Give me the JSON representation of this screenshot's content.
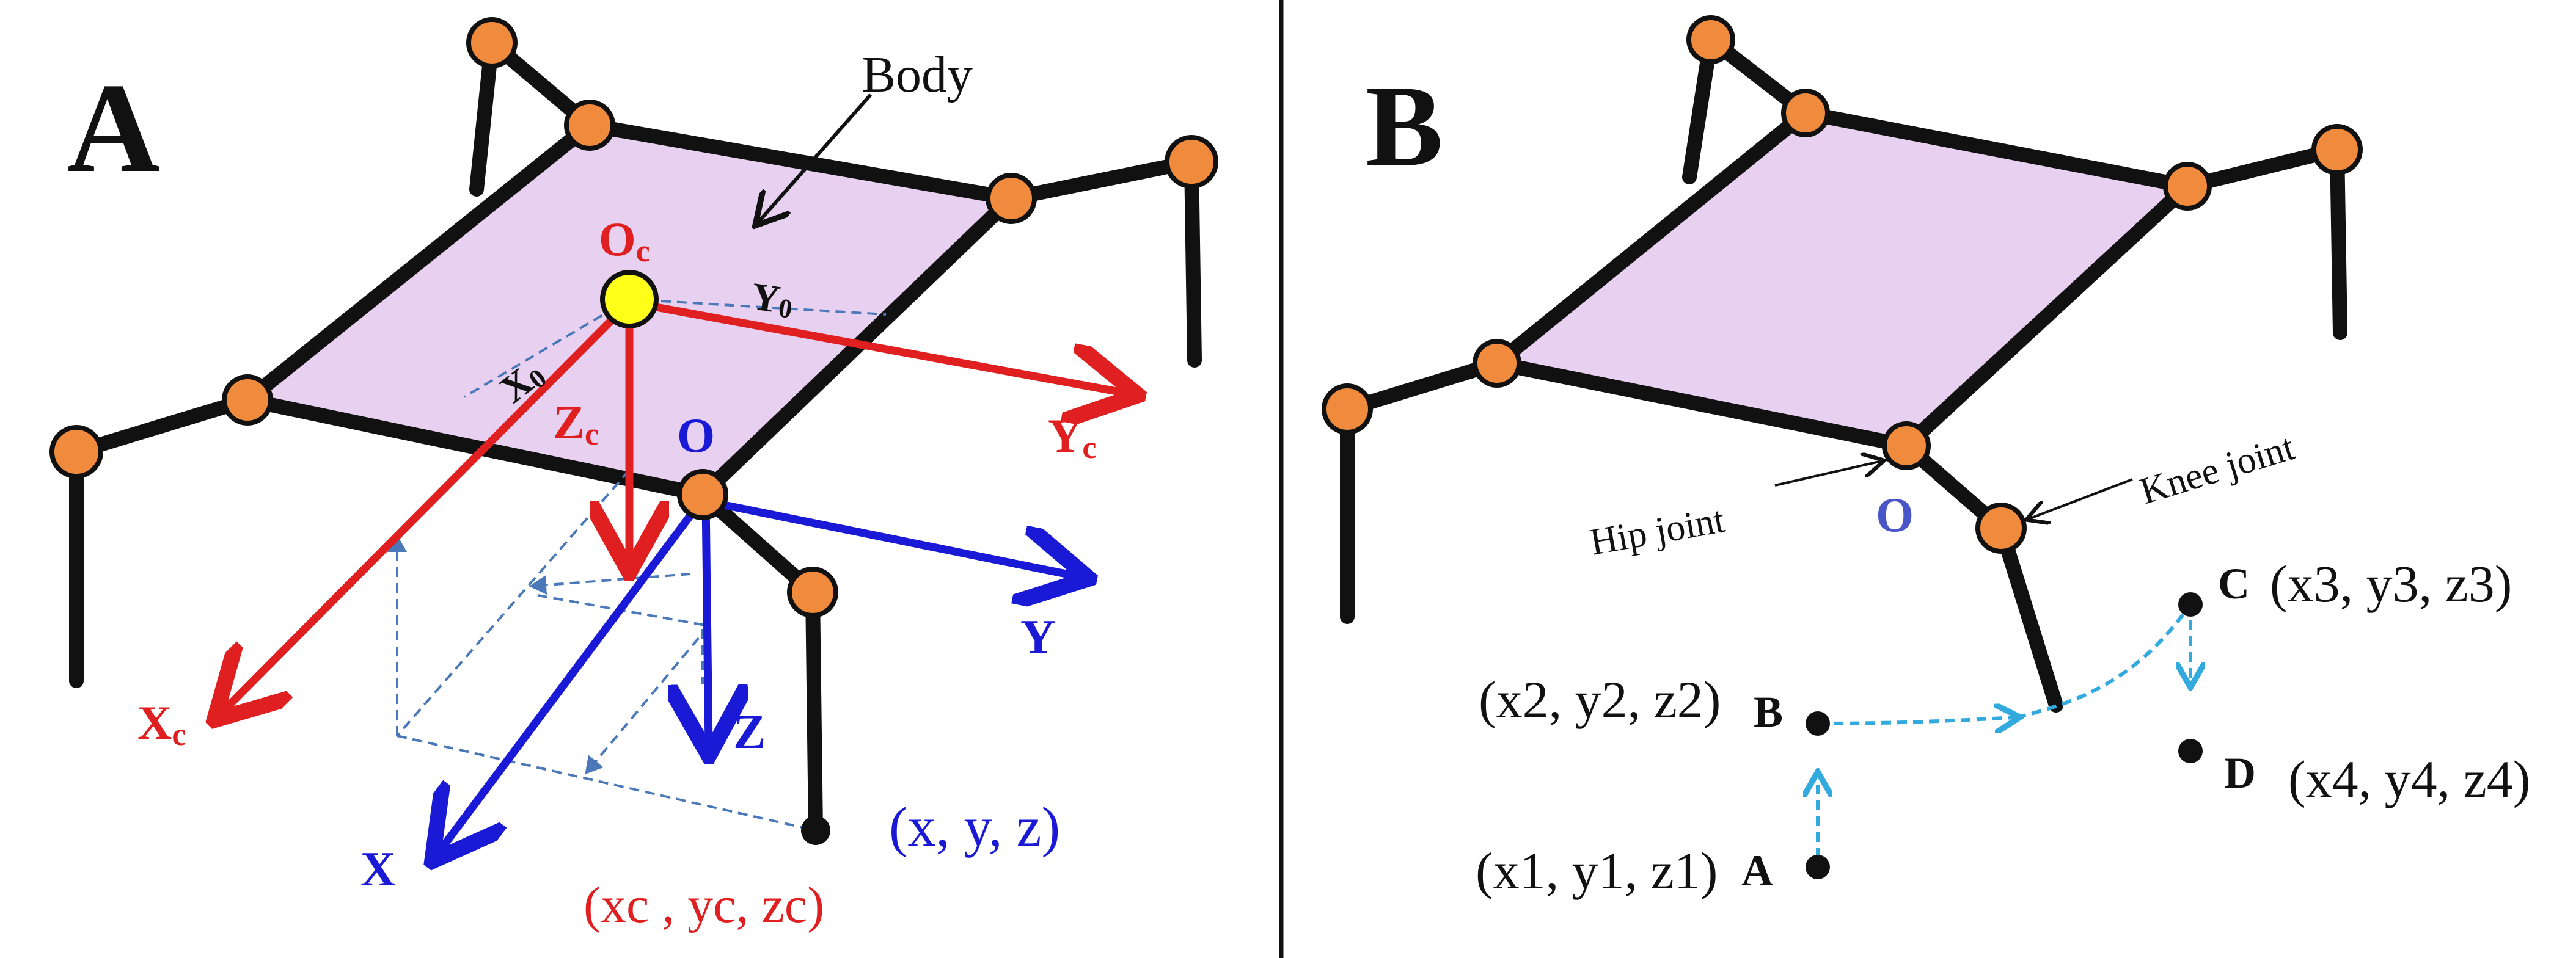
{
  "colors": {
    "body_fill": "#e8d0f0",
    "frame": "#111111",
    "joint_fill": "#f08a3c",
    "joint_center": "#ffff1a",
    "red_axis": "#e02020",
    "blue_axis": "#1a1ad6",
    "dashed_guide": "#4a78b8",
    "trajectory": "#33aadd",
    "point": "#111111"
  },
  "panel_a": {
    "letter": "A",
    "body_label": "Body",
    "center_label_main": "O",
    "center_label_sub": "c",
    "x0_main": "X",
    "x0_sub": "0",
    "y0_main": "Y",
    "y0_sub": "0",
    "zc_main": "Z",
    "zc_sub": "c",
    "xc_main": "X",
    "xc_sub": "c",
    "yc_main": "Y",
    "yc_sub": "c",
    "origin_label": "O",
    "x_label": "X",
    "y_label": "Y",
    "z_label": "Z",
    "foot_coord": "(x, y, z)",
    "foot_coord_c": "(xc , yc, zc)"
  },
  "panel_b": {
    "letter": "B",
    "hip_label": "Hip joint",
    "knee_label": "Knee joint",
    "origin_label": "O",
    "points": [
      {
        "name": "A",
        "coord": "(x1, y1, z1)"
      },
      {
        "name": "B",
        "coord": "(x2, y2, z2)"
      },
      {
        "name": "C",
        "coord": "(x3, y3, z3)"
      },
      {
        "name": "D",
        "coord": "(x4, y4, z4)"
      }
    ]
  }
}
